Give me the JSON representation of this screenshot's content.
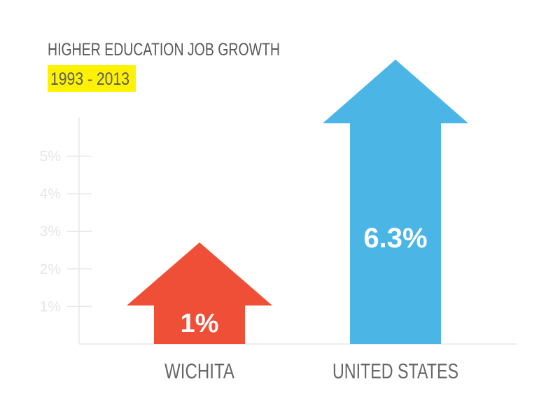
{
  "chart_data": {
    "type": "bar",
    "title": "HIGHER EDUCATION JOB GROWTH",
    "subtitle": "1993 - 2013",
    "categories": [
      "WICHITA",
      "UNITED STATES"
    ],
    "values": [
      1,
      6.3
    ],
    "data_labels": [
      "1%",
      "6.3%"
    ],
    "ylabel": "",
    "xlabel": "",
    "yticks": [
      1,
      2,
      3,
      4,
      5
    ],
    "ytick_labels": [
      "1%",
      "2%",
      "3%",
      "4%",
      "5%"
    ],
    "ylim": [
      0,
      6
    ],
    "grid": false,
    "colors": [
      "#EF4E37",
      "#4BB5E6"
    ],
    "title_color": "#58595B",
    "highlight_color": "#FFF200"
  }
}
